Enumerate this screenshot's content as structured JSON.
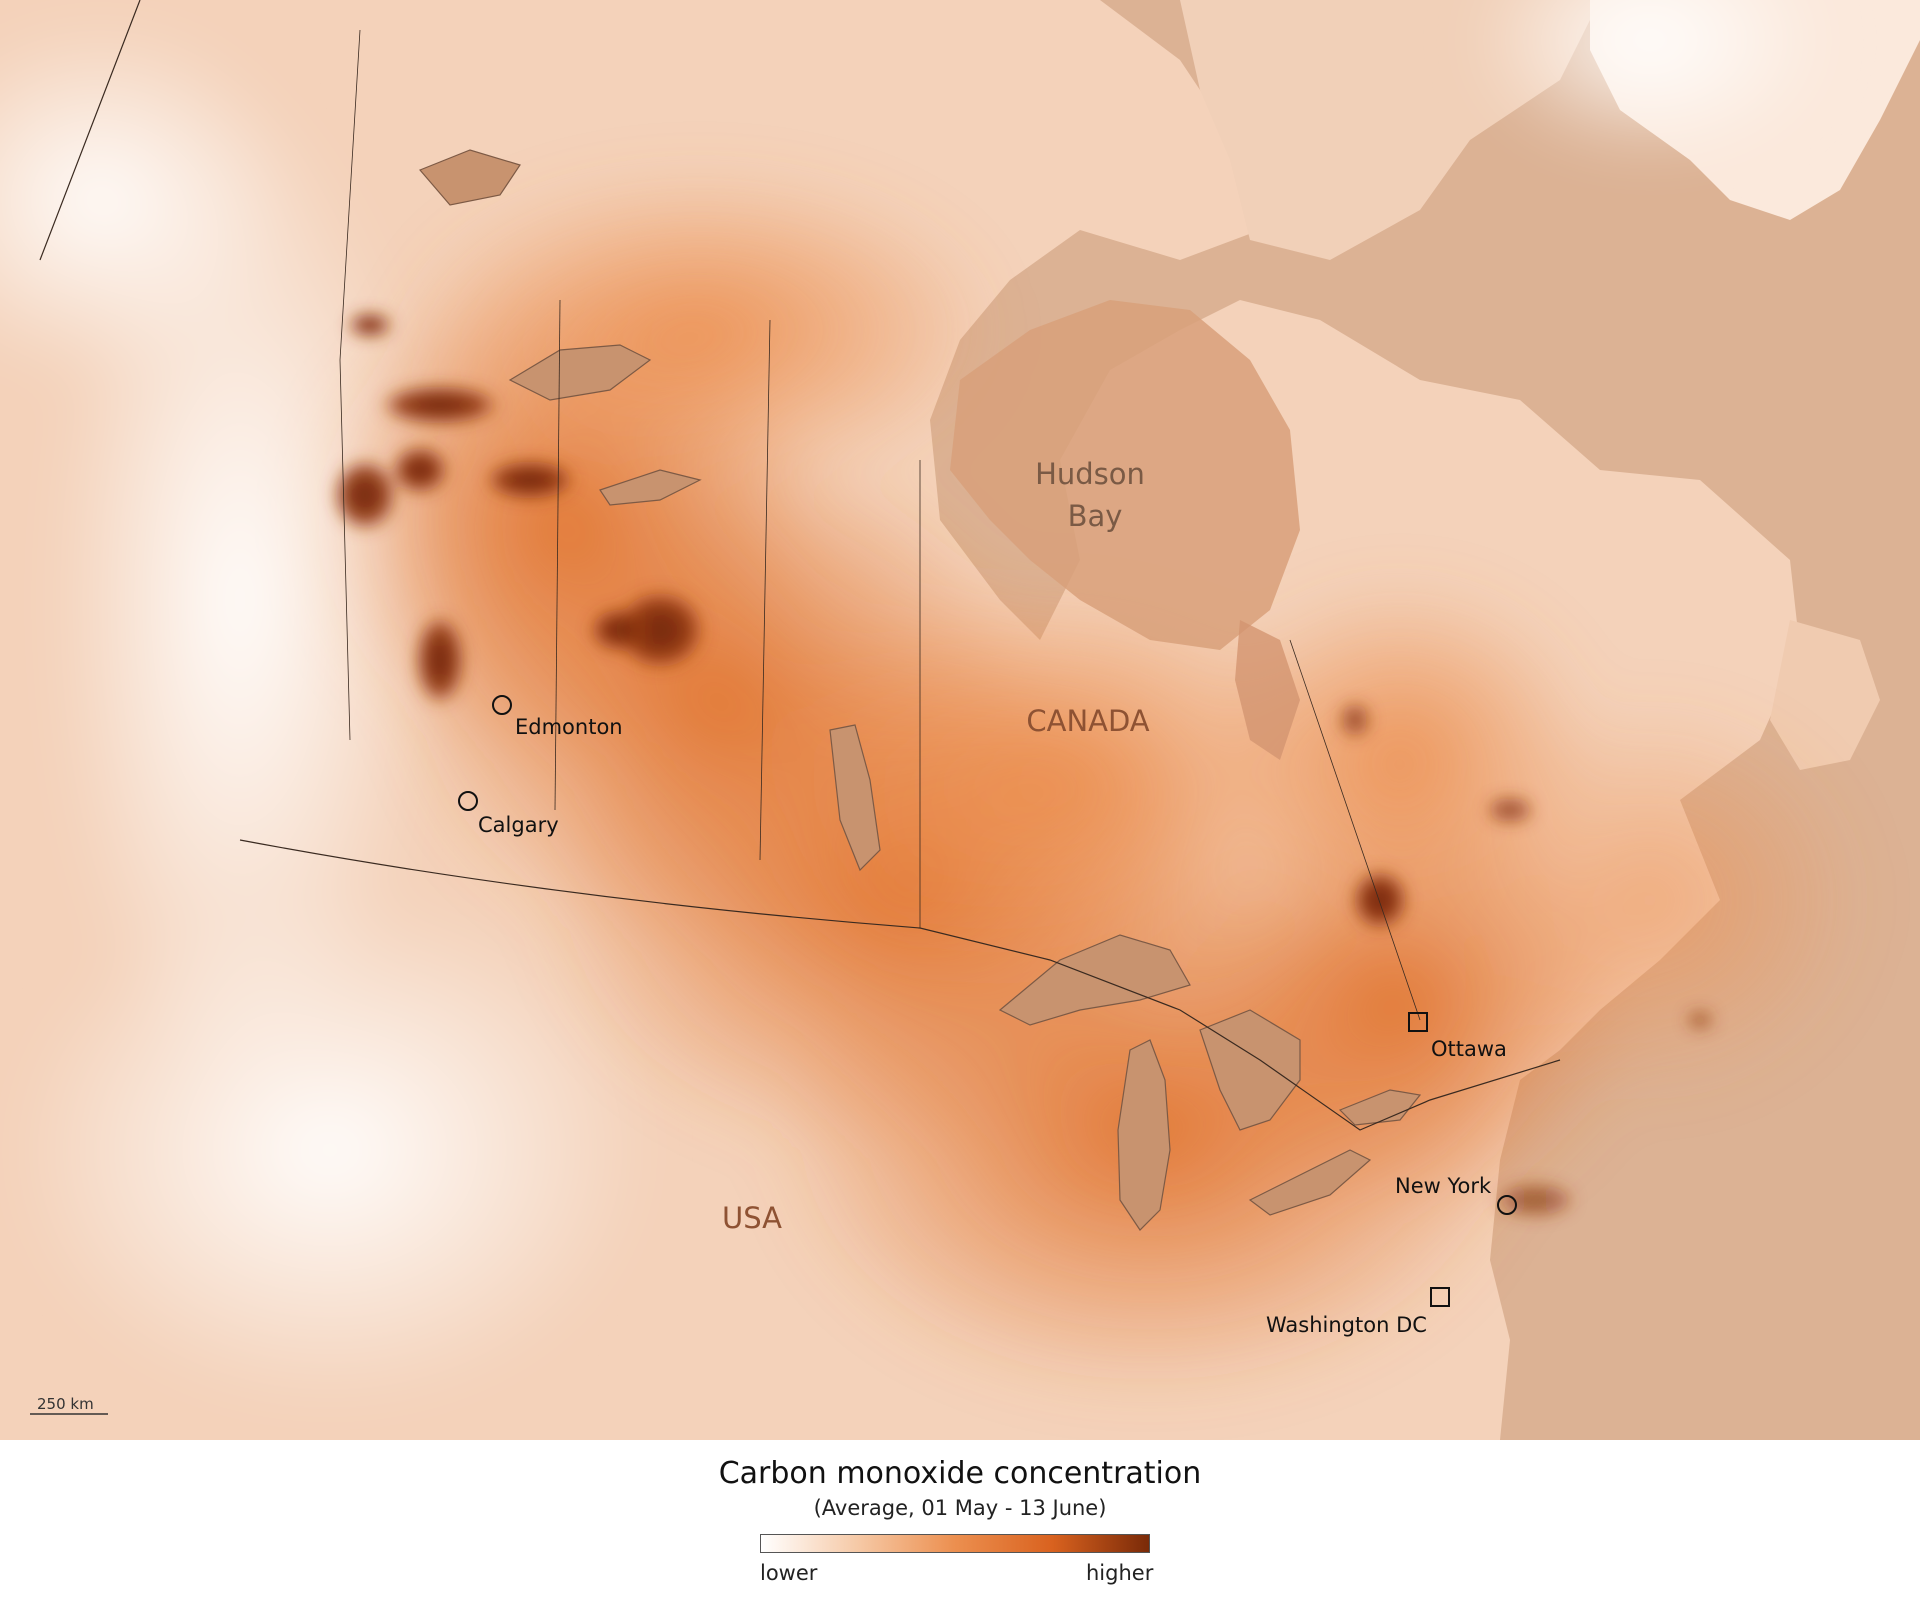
{
  "map": {
    "places": {
      "country_canada": "CANADA",
      "country_usa": "USA",
      "water_hudson_1": "Hudson",
      "water_hudson_2": "Bay"
    },
    "cities": {
      "edmonton": "Edmonton",
      "calgary": "Calgary",
      "ottawa": "Ottawa",
      "new_york": "New York",
      "washington": "Washington DC"
    },
    "scale_label": "250 km"
  },
  "legend": {
    "title": "Carbon monoxide concentration",
    "subtitle": "(Average, 01 May - 13 June)",
    "low_label": "lower",
    "high_label": "higher",
    "colors": [
      "#ffffff",
      "#f6c9a6",
      "#ec8f4f",
      "#d9621f",
      "#7a2a08"
    ]
  }
}
